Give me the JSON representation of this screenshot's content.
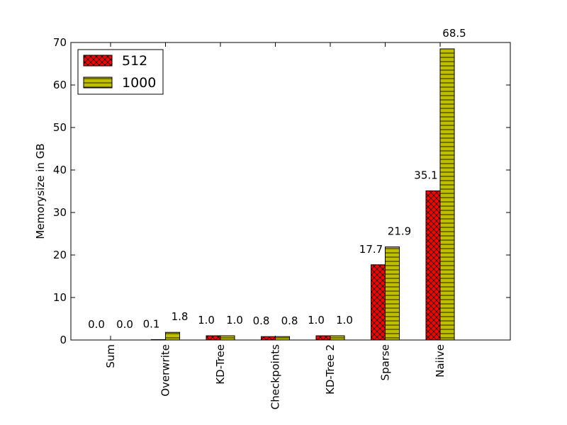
{
  "chart_data": {
    "type": "bar",
    "title": "",
    "xlabel": "",
    "ylabel": "Memorysize in GB",
    "ylim": [
      0,
      70
    ],
    "yticks": [
      0,
      10,
      20,
      30,
      40,
      50,
      60,
      70
    ],
    "categories": [
      "Sum",
      "Overwrite",
      "KD-Tree",
      "Checkpoints",
      "KD-Tree 2",
      "Sparse",
      "Naiive"
    ],
    "series": [
      {
        "name": "512",
        "values": [
          0.0,
          0.1,
          1.0,
          0.8,
          1.0,
          17.7,
          35.1
        ],
        "color": "#ff0000",
        "hatch": "cross"
      },
      {
        "name": "1000",
        "values": [
          0.0,
          1.8,
          1.0,
          0.8,
          1.0,
          21.9,
          68.5
        ],
        "color": "#bfbf00",
        "hatch": "horizontal"
      }
    ],
    "value_labels": true,
    "grid": false,
    "legend": {
      "position": "top-left"
    }
  }
}
